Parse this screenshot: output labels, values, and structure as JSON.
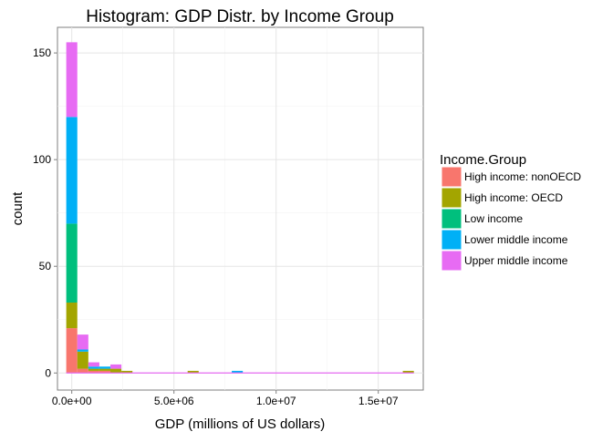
{
  "chart_data": {
    "type": "bar",
    "stacked": true,
    "title": "Histogram: GDP Distr. by Income Group",
    "xlabel": "GDP (millions of US dollars)",
    "ylabel": "count",
    "xlim": [
      -700000,
      17200000
    ],
    "ylim": [
      -8,
      162
    ],
    "x_ticks": [
      0,
      5000000,
      10000000,
      15000000
    ],
    "x_tick_labels": [
      "0.0e+00",
      "5.0e+06",
      "1.0e+07",
      "1.5e+07"
    ],
    "y_ticks": [
      0,
      50,
      100,
      150
    ],
    "y_tick_labels": [
      "0",
      "50",
      "100",
      "150"
    ],
    "bin_width": 540000,
    "bin_starts": [
      -270000,
      270000,
      810000,
      1350000,
      1890000,
      2430000,
      5670000,
      7830000,
      16200000
    ],
    "legend_title": "Income.Group",
    "legend_position": "right",
    "grid": true,
    "series": [
      {
        "name": "High income: nonOECD",
        "color": "#F8766D",
        "values": [
          21,
          2,
          1,
          1,
          0,
          0,
          0,
          0,
          0
        ]
      },
      {
        "name": "High income: OECD",
        "color": "#A3A500",
        "values": [
          12,
          8,
          1,
          1,
          2,
          1,
          1,
          0,
          1
        ]
      },
      {
        "name": "Low income",
        "color": "#00BF7D",
        "values": [
          37,
          0,
          0,
          0,
          0,
          0,
          0,
          0,
          0
        ]
      },
      {
        "name": "Lower middle income",
        "color": "#00B0F6",
        "values": [
          50,
          1,
          1,
          1,
          0,
          0,
          0,
          1,
          0
        ]
      },
      {
        "name": "Upper middle income",
        "color": "#E76BF3",
        "values": [
          35,
          7,
          2,
          0,
          2,
          0,
          0,
          0,
          0
        ]
      }
    ]
  }
}
